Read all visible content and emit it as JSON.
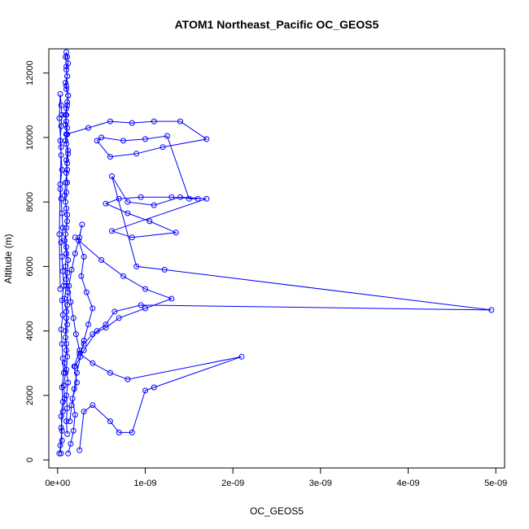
{
  "chart_data": {
    "type": "line",
    "title": "ATOM1 Northeast_Pacific OC_GEOS5",
    "xlabel": "OC_GEOS5",
    "ylabel": "Altitude (m)",
    "xlim": [
      -1e-10,
      5.1e-09
    ],
    "ylim": [
      -250,
      12750
    ],
    "x_ticks": [
      0,
      1e-09,
      2e-09,
      3e-09,
      4e-09,
      5e-09
    ],
    "x_tick_labels": [
      "0e+00",
      "1e-09",
      "2e-09",
      "3e-09",
      "4e-09",
      "5e-09"
    ],
    "y_ticks": [
      0,
      2000,
      4000,
      6000,
      8000,
      10000,
      12000
    ],
    "y_tick_labels": [
      "0",
      "2000",
      "4000",
      "6000",
      "8000",
      "10000",
      "12000"
    ],
    "grid": false,
    "legend": "none",
    "series_color": "#0000ff",
    "marker": "open-circle",
    "series": [
      {
        "x": [
          2e-11,
          5e-11,
          4e-11,
          6e-11,
          8e-11,
          7e-11,
          9e-11,
          8e-11,
          1e-10,
          9e-11,
          1.1e-10,
          1e-10,
          8e-11,
          1e-10,
          1.1e-10,
          1.2e-10,
          1e-10,
          9e-11,
          1.1e-10,
          1e-10,
          8e-11,
          9e-11,
          1.1e-10,
          1e-10,
          1.2e-10,
          9e-11,
          1e-10,
          1.1e-10,
          1e-10,
          9e-11,
          1e-10,
          1.1e-10,
          1.2e-10,
          1e-10,
          9e-11,
          1.1e-10,
          1e-10,
          1.2e-10,
          1.1e-10,
          1e-10,
          9e-11,
          1e-10,
          1.1e-10,
          1e-10,
          1.2e-10,
          1.1e-10,
          1e-10,
          9e-11,
          1.1e-10,
          1e-10,
          1.2e-10,
          1.1e-10,
          1e-10,
          1.1e-10,
          1e-10,
          9e-11,
          1.1e-10,
          1e-10,
          8e-11,
          1e-10,
          9e-11,
          1e-10,
          1.2e-10,
          1.1e-10,
          1e-10,
          9e-11,
          1e-10,
          1.1e-10,
          1e-10,
          1.2e-10,
          1e-10,
          1.1e-10,
          1e-10,
          1.1e-10
        ],
        "y": [
          200,
          600,
          1000,
          1500,
          1900,
          2300,
          2700,
          3000,
          3400,
          3800,
          4200,
          4600,
          5000,
          5400,
          5800,
          6200,
          6600,
          7000,
          7400,
          7800,
          8200,
          8600,
          9000,
          9300,
          9600,
          9900,
          10100,
          10300,
          10500,
          10700,
          10900,
          11100,
          11300,
          11500,
          11700,
          11900,
          12100,
          12300,
          12500,
          12650,
          12500,
          12200,
          11900,
          11600,
          11300,
          11000,
          10700,
          10400,
          10100,
          9800,
          9500,
          9200,
          8900,
          8600,
          8300,
          8000,
          7600,
          7200,
          6800,
          6400,
          6000,
          5600,
          5200,
          4800,
          4400,
          4000,
          3600,
          3200,
          2800,
          2400,
          2000,
          1600,
          1200,
          800
        ]
      },
      {
        "x": [
          4e-11,
          3e-11,
          5e-11,
          4e-11,
          6e-11,
          5e-11,
          7e-11,
          6e-11,
          5e-11,
          4e-11,
          6e-11,
          5e-11,
          7e-11,
          6e-11,
          5e-11,
          4e-11,
          6e-11,
          5e-11,
          4e-11,
          3e-11,
          5e-11,
          4e-11,
          3e-11,
          4e-11,
          5e-11,
          4e-11,
          3e-11,
          2e-11,
          4e-11,
          3e-11,
          2e-11,
          3e-11
        ],
        "y": [
          200,
          450,
          900,
          1350,
          1800,
          2250,
          2700,
          3150,
          3600,
          4050,
          4500,
          4950,
          5400,
          5850,
          6300,
          6750,
          7200,
          7650,
          8100,
          8550,
          9000,
          9450,
          9900,
          10350,
          10700,
          11000,
          11350,
          10600,
          9700,
          8400,
          7000,
          5300
        ]
      },
      {
        "x": [
          1.2e-10,
          1.5e-10,
          1.8e-10,
          2e-10,
          1.7e-10,
          2.2e-10,
          1.9e-10,
          2.5e-10,
          2.1e-10,
          1.8e-10,
          1.5e-10,
          1.3e-10,
          1.6e-10,
          2e-10,
          2.5e-10,
          2.8e-10,
          2.4e-10,
          3e-10,
          2.7e-10,
          3.3e-10,
          4e-10,
          3.5e-10,
          3e-10,
          2.6e-10,
          2.2e-10,
          1.9e-10,
          1.6e-10,
          1.4e-10
        ],
        "y": [
          200,
          500,
          900,
          1400,
          1900,
          2400,
          2900,
          3400,
          3900,
          4400,
          4900,
          5400,
          5900,
          6400,
          6900,
          7300,
          6800,
          6300,
          5700,
          5200,
          4700,
          4200,
          3700,
          3200,
          2700,
          2200,
          1700,
          1200
        ]
      },
      {
        "x": [
          1e-10,
          3.5e-10,
          6e-10,
          8.5e-10,
          1.1e-09,
          1.4e-09,
          1.7e-09,
          1.2e-09,
          9e-10,
          6e-10,
          4.5e-10,
          5e-10,
          7.5e-10,
          1e-09,
          1.25e-09,
          1.5e-09,
          1.6e-09,
          1.3e-09,
          9.5e-10,
          7e-10,
          5.5e-10,
          8e-10,
          1.05e-09,
          1.35e-09,
          8.5e-10,
          6.2e-10,
          1.7e-09,
          1.4e-09,
          1.1e-09,
          8e-10,
          6.2e-10,
          9e-10,
          1.22e-09,
          4.95e-09,
          9.5e-10,
          6.5e-10,
          5.5e-10,
          4.5e-10,
          3e-10,
          2e-10
        ],
        "y": [
          10100,
          10300,
          10500,
          10450,
          10500,
          10500,
          9950,
          9700,
          9500,
          9400,
          9900,
          10000,
          9900,
          9950,
          10050,
          8100,
          8100,
          8150,
          8150,
          8100,
          7950,
          7650,
          7400,
          7050,
          6900,
          7100,
          8100,
          8150,
          7900,
          8000,
          8800,
          6000,
          5900,
          4650,
          4800,
          4600,
          4200,
          4000,
          3400,
          2900
        ]
      },
      {
        "x": [
          2e-10,
          5e-10,
          7.5e-10,
          1e-09,
          1.3e-09,
          1e-09,
          7e-10,
          5.5e-10,
          4e-10,
          3e-10,
          2.5e-10,
          4e-10,
          6e-10,
          8e-10,
          2.1e-09,
          1.1e-09,
          1e-09,
          8.5e-10,
          7e-10,
          6e-10,
          4e-10,
          3e-10,
          2.5e-10
        ],
        "y": [
          6900,
          6200,
          5700,
          5300,
          5000,
          4700,
          4400,
          4100,
          3900,
          3600,
          3300,
          3000,
          2700,
          2500,
          3200,
          2250,
          2150,
          850,
          850,
          1200,
          1700,
          1500,
          300
        ]
      }
    ]
  }
}
